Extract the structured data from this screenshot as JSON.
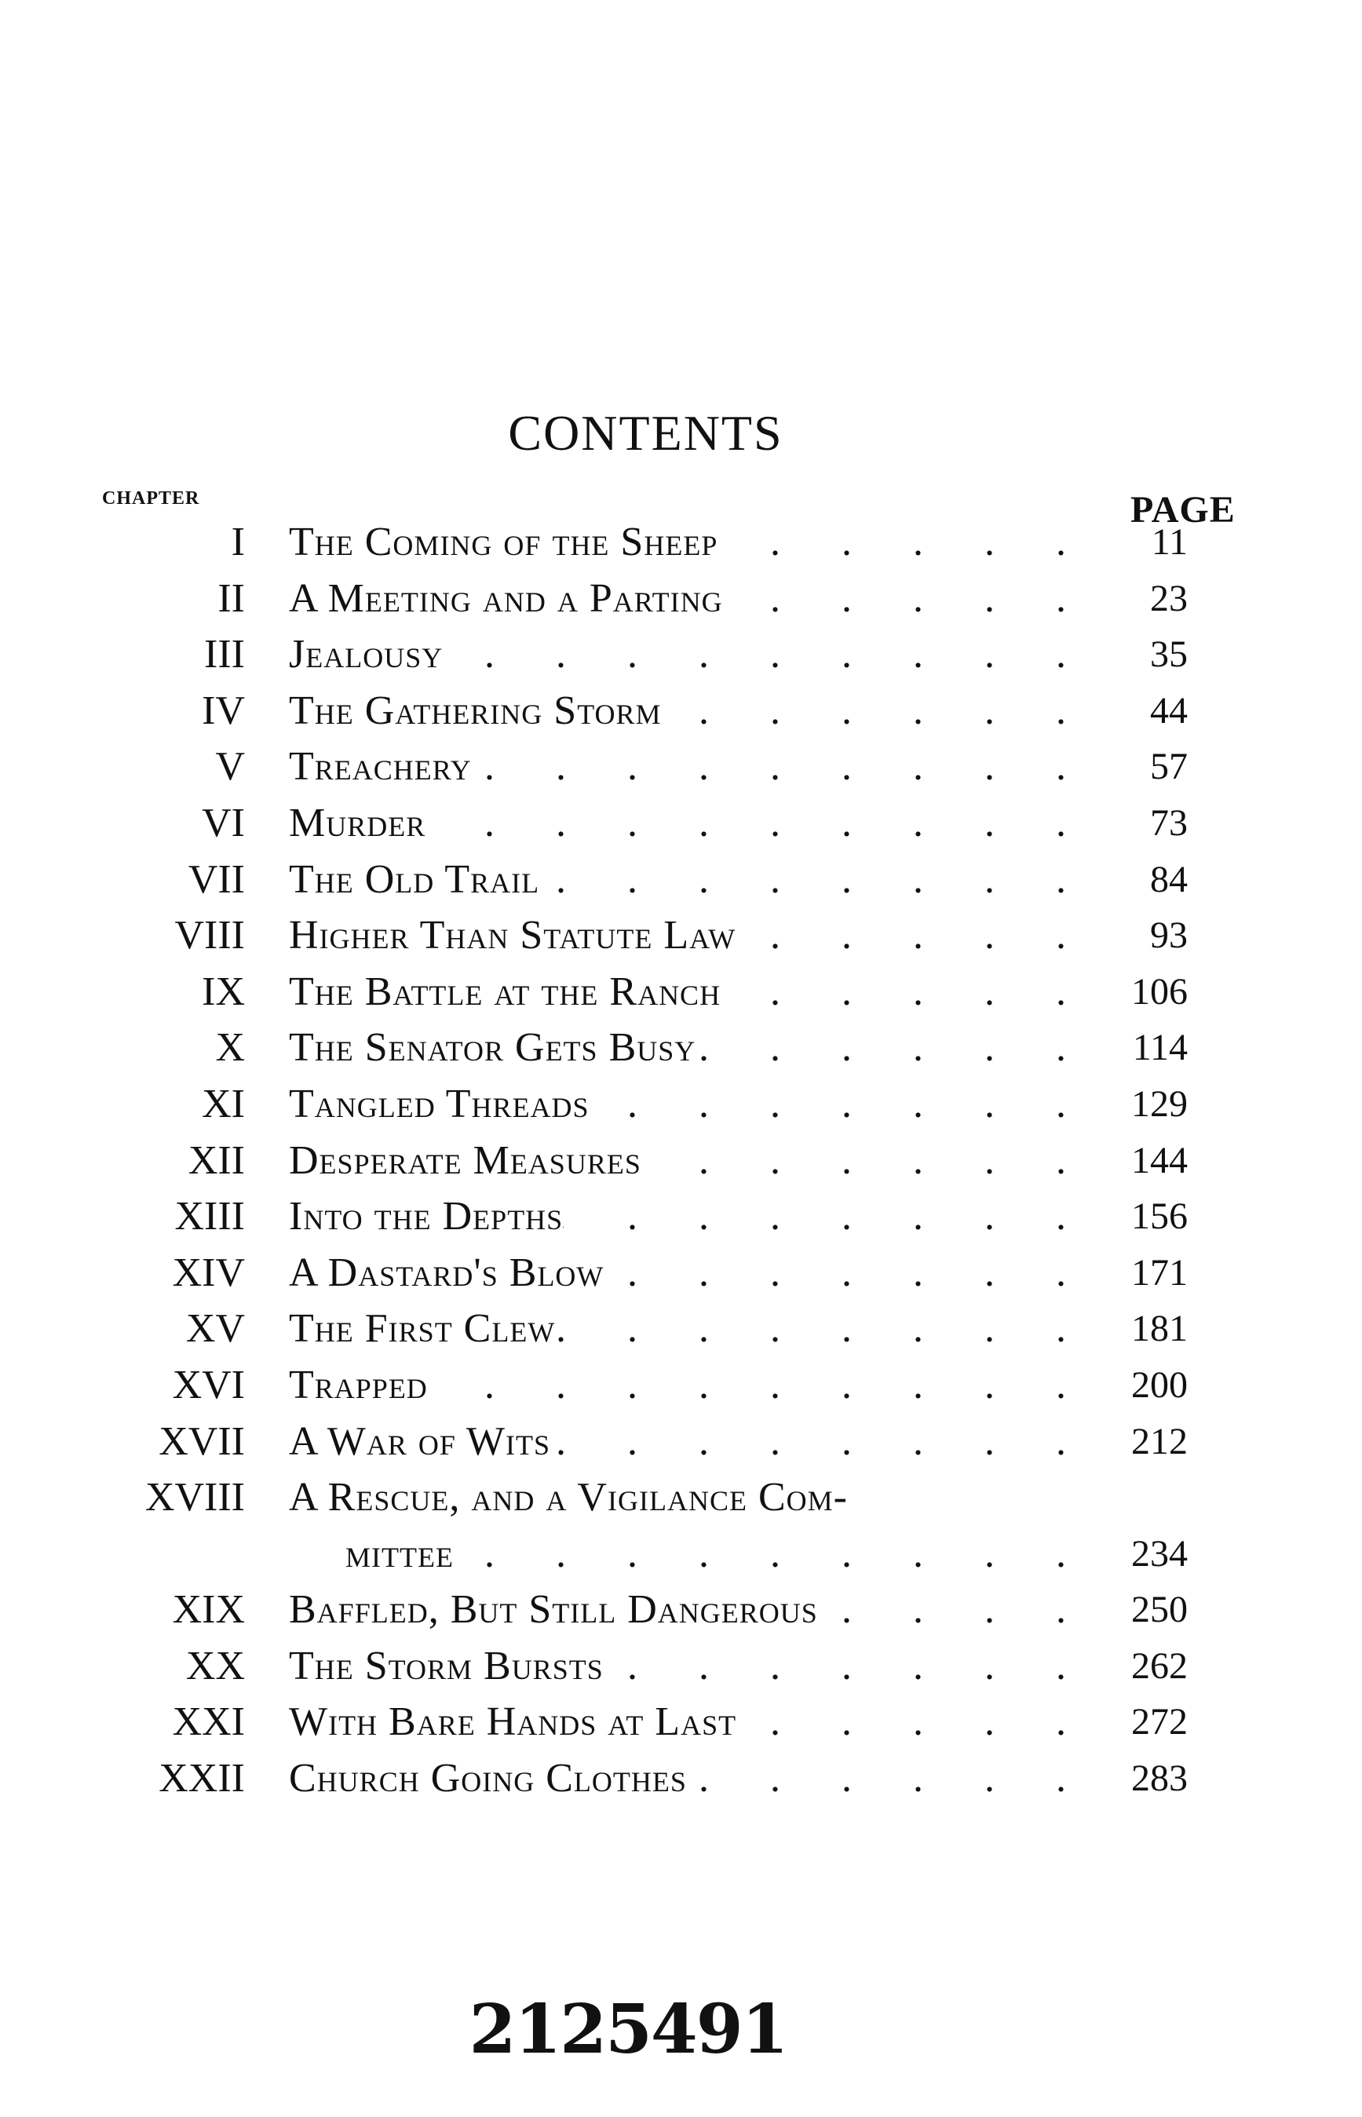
{
  "heading": "CONTENTS",
  "column_labels": {
    "chapter": "CHAPTER",
    "page": "PAGE"
  },
  "chapters": [
    {
      "numeral": "I",
      "title": [
        "The Coming of the Sheep"
      ],
      "page": "11"
    },
    {
      "numeral": "II",
      "title": [
        "A Meeting and a Parting"
      ],
      "page": "23"
    },
    {
      "numeral": "III",
      "title": [
        "Jealousy"
      ],
      "page": "35"
    },
    {
      "numeral": "IV",
      "title": [
        "The Gathering Storm"
      ],
      "page": "44"
    },
    {
      "numeral": "V",
      "title": [
        "Treachery"
      ],
      "page": "57"
    },
    {
      "numeral": "VI",
      "title": [
        "Murder"
      ],
      "page": "73"
    },
    {
      "numeral": "VII",
      "title": [
        "The Old Trail"
      ],
      "page": "84"
    },
    {
      "numeral": "VIII",
      "title": [
        "Higher Than Statute Law"
      ],
      "page": "93"
    },
    {
      "numeral": "IX",
      "title": [
        "The Battle at the Ranch"
      ],
      "page": "106"
    },
    {
      "numeral": "X",
      "title": [
        "The Senator Gets Busy"
      ],
      "page": "114"
    },
    {
      "numeral": "XI",
      "title": [
        "Tangled Threads"
      ],
      "page": "129"
    },
    {
      "numeral": "XII",
      "title": [
        "Desperate Measures"
      ],
      "page": "144"
    },
    {
      "numeral": "XIII",
      "title": [
        "Into the Depths"
      ],
      "page": "156"
    },
    {
      "numeral": "XIV",
      "title": [
        "A Dastard's Blow"
      ],
      "page": "171"
    },
    {
      "numeral": "XV",
      "title": [
        "The First Clew"
      ],
      "page": "181"
    },
    {
      "numeral": "XVI",
      "title": [
        "Trapped"
      ],
      "page": "200"
    },
    {
      "numeral": "XVII",
      "title": [
        "A War of Wits"
      ],
      "page": "212"
    },
    {
      "numeral": "XVIII",
      "title": [
        "A Rescue, and a Vigilance Com-",
        "mittee"
      ],
      "page": "234"
    },
    {
      "numeral": "XIX",
      "title": [
        "Baffled, But Still Dangerous"
      ],
      "page": "250"
    },
    {
      "numeral": "XX",
      "title": [
        "The Storm Bursts"
      ],
      "page": "262"
    },
    {
      "numeral": "XXI",
      "title": [
        "With Bare Hands at Last"
      ],
      "page": "272"
    },
    {
      "numeral": "XXII",
      "title": [
        "Church Going Clothes"
      ],
      "page": "283"
    }
  ],
  "stamp_number": "2125491"
}
